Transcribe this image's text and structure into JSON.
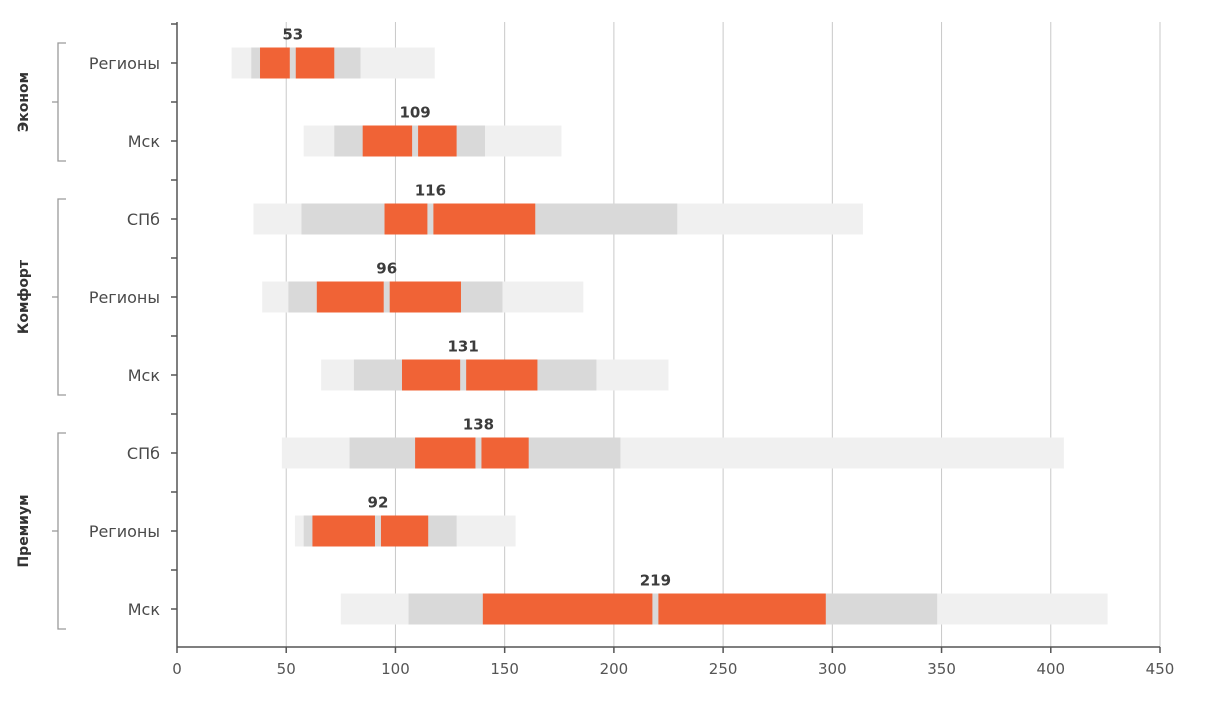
{
  "chart_data": {
    "type": "box",
    "orientation": "horizontal",
    "xlim": [
      0,
      450
    ],
    "xticks": [
      0,
      50,
      100,
      150,
      200,
      250,
      300,
      350,
      400,
      450
    ],
    "grid": "vertical",
    "colors": {
      "outer_range": "#f0f0f0",
      "middle_range": "#d9d9d9",
      "inner_range": "#f06336",
      "gridline": "#c8c8c8",
      "axis": "#555555"
    },
    "groups": [
      {
        "name": "Эконом",
        "rows": [
          "Регионы",
          "Мск"
        ]
      },
      {
        "name": "Комфорт",
        "rows": [
          "СПб",
          "Регионы",
          "Мск"
        ]
      },
      {
        "name": "Премиум",
        "rows": [
          "СПб",
          "Регионы",
          "Мск"
        ]
      }
    ],
    "rows": [
      {
        "group": "Эконом",
        "label": "Регионы",
        "outer": [
          25,
          118
        ],
        "middle": [
          34,
          84
        ],
        "inner": [
          38,
          72
        ],
        "median": 53
      },
      {
        "group": "Эконом",
        "label": "Мск",
        "outer": [
          58,
          176
        ],
        "middle": [
          72,
          141
        ],
        "inner": [
          85,
          128
        ],
        "median": 109
      },
      {
        "group": "Комфорт",
        "label": "СПб",
        "outer": [
          35,
          314
        ],
        "middle": [
          57,
          229
        ],
        "inner": [
          95,
          164
        ],
        "median": 116
      },
      {
        "group": "Комфорт",
        "label": "Регионы",
        "outer": [
          39,
          186
        ],
        "middle": [
          51,
          149
        ],
        "inner": [
          64,
          130
        ],
        "median": 96
      },
      {
        "group": "Комфорт",
        "label": "Мск",
        "outer": [
          66,
          225
        ],
        "middle": [
          81,
          192
        ],
        "inner": [
          103,
          165
        ],
        "median": 131
      },
      {
        "group": "Премиум",
        "label": "СПб",
        "outer": [
          48,
          406
        ],
        "middle": [
          79,
          203
        ],
        "inner": [
          109,
          161
        ],
        "median": 138
      },
      {
        "group": "Премиум",
        "label": "Регионы",
        "outer": [
          54,
          155
        ],
        "middle": [
          58,
          128
        ],
        "inner": [
          62,
          115
        ],
        "median": 92
      },
      {
        "group": "Премиум",
        "label": "Мск",
        "outer": [
          75,
          426
        ],
        "middle": [
          106,
          348
        ],
        "inner": [
          140,
          297
        ],
        "median": 219
      }
    ]
  }
}
